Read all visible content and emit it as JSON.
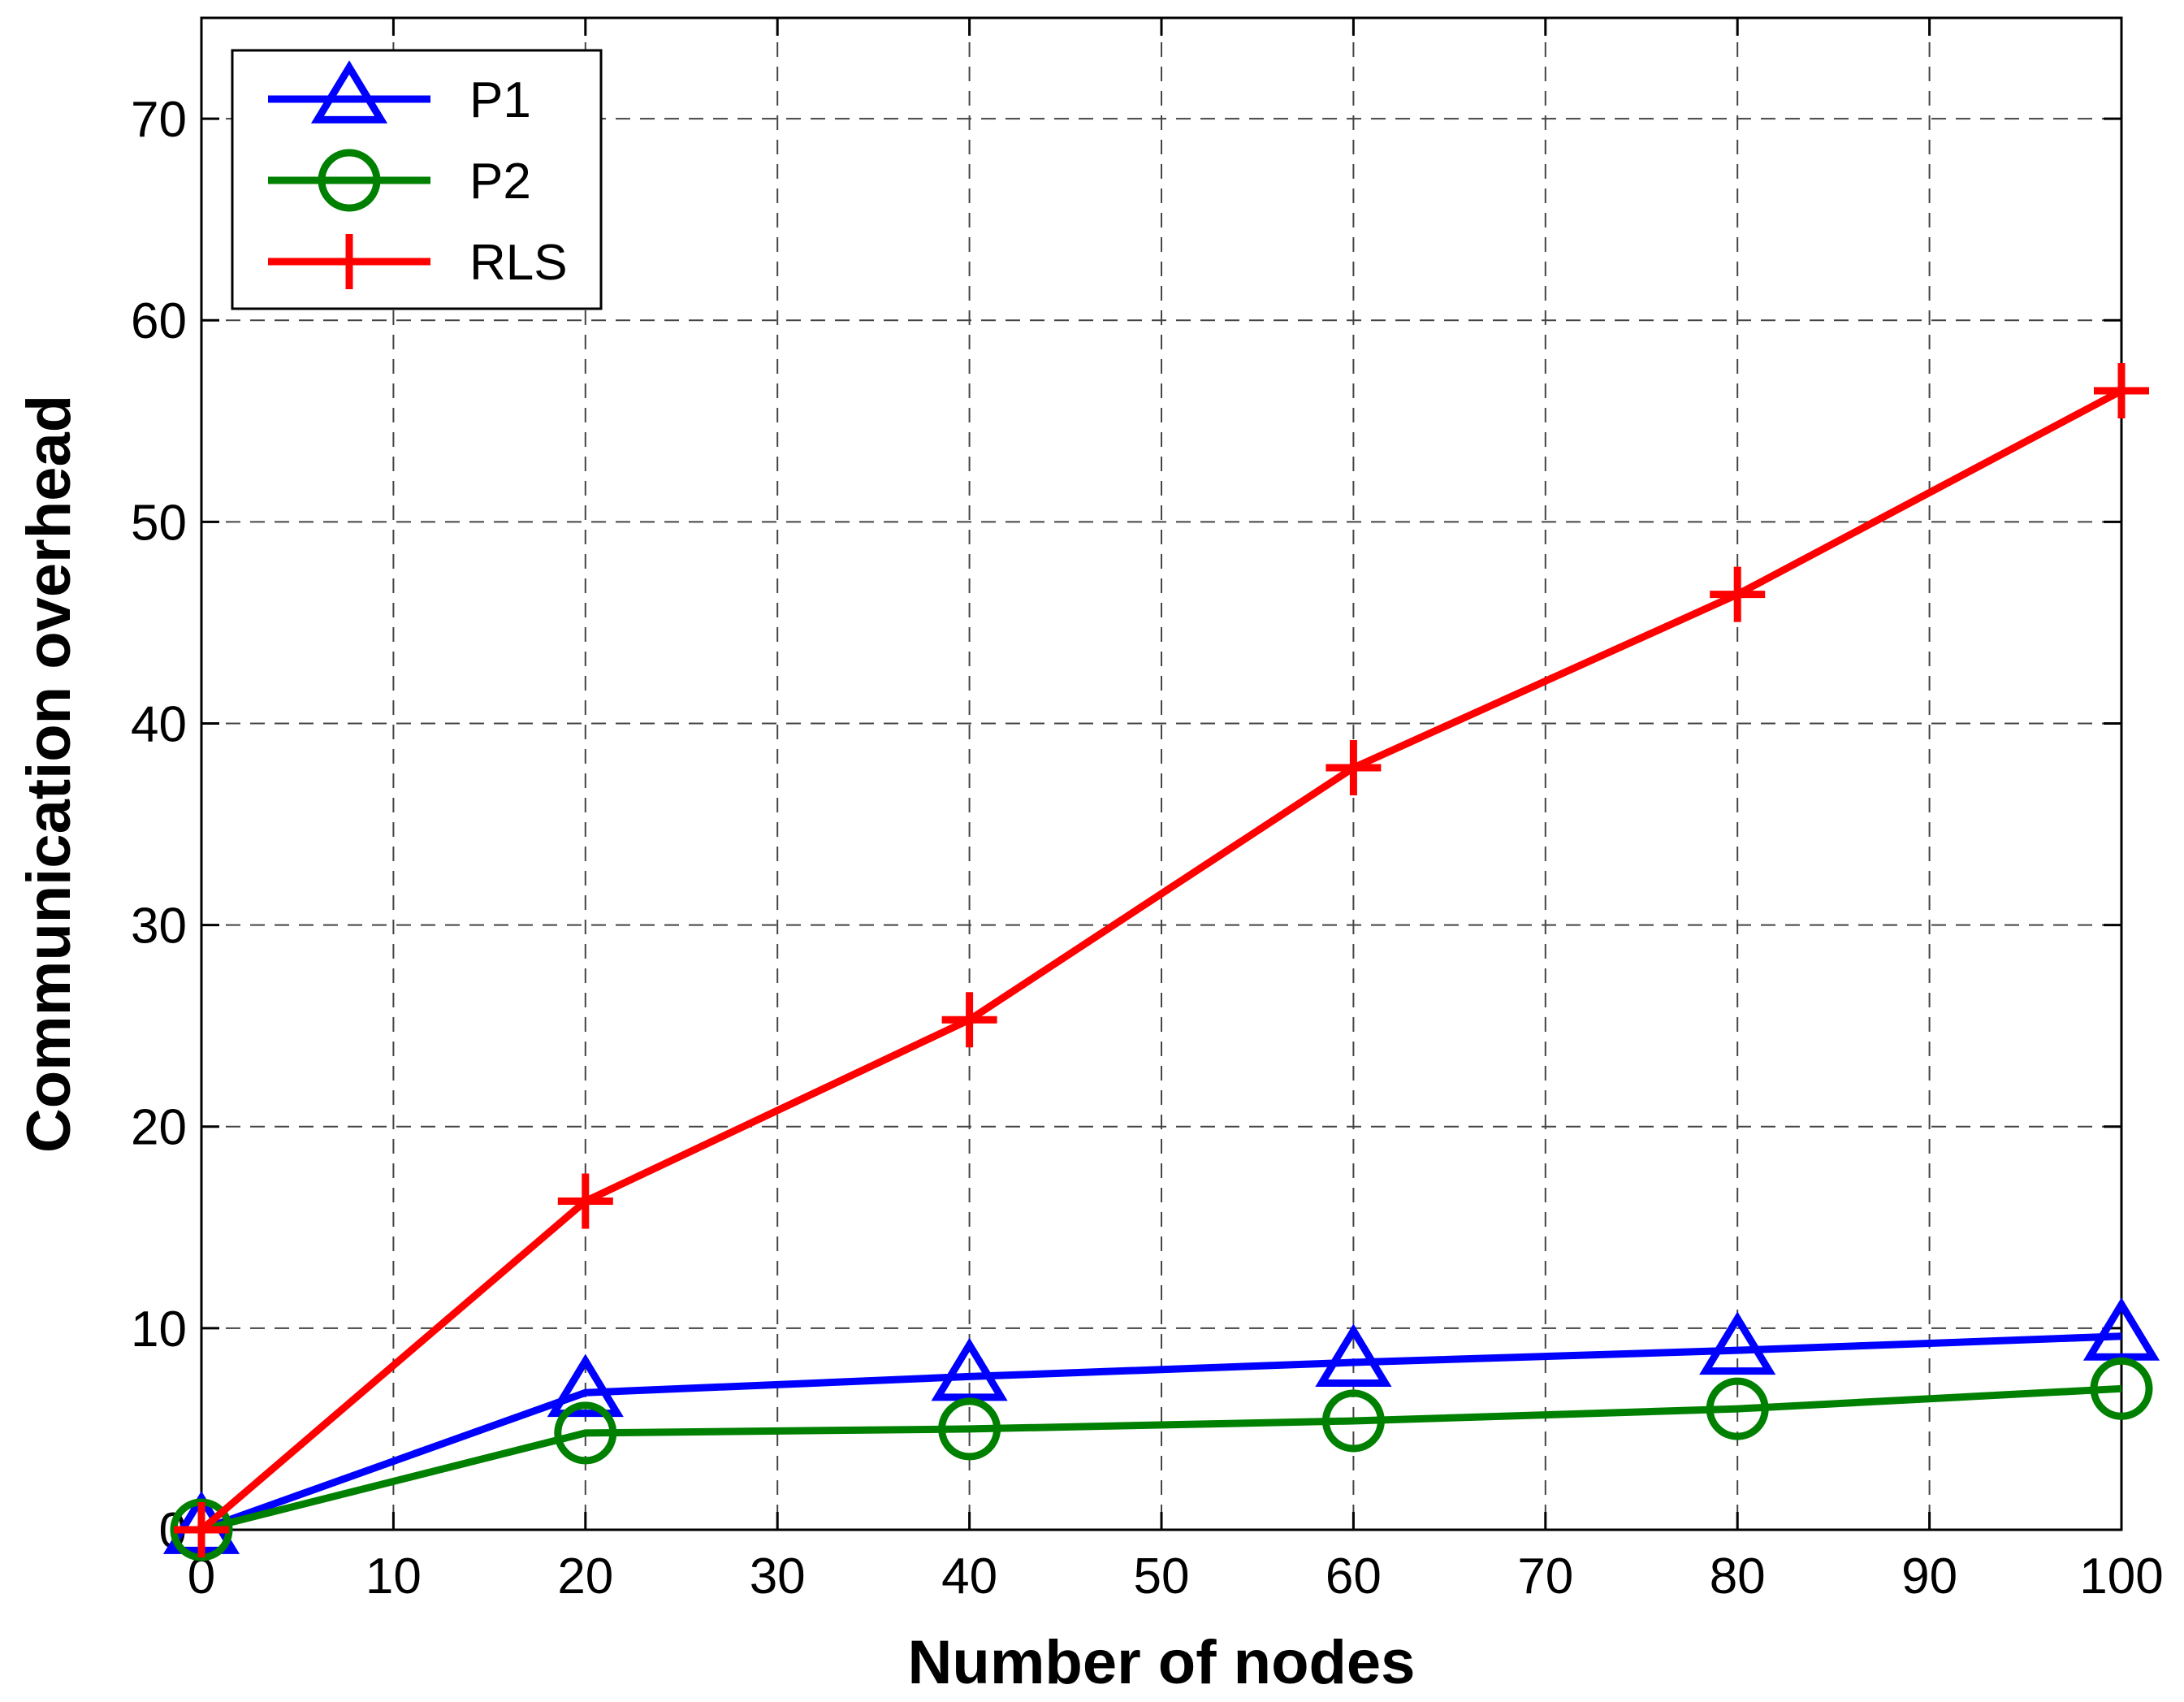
{
  "chart_data": {
    "type": "line",
    "title": "",
    "xlabel": "Number of nodes",
    "ylabel": "Communication overhead",
    "xlim": [
      0,
      100
    ],
    "ylim": [
      0,
      75
    ],
    "x_ticks": [
      0,
      10,
      20,
      30,
      40,
      50,
      60,
      70,
      80,
      90,
      100
    ],
    "y_ticks": [
      0,
      10,
      20,
      30,
      40,
      50,
      60,
      70
    ],
    "grid": true,
    "legend_position": "top-left",
    "x": [
      0,
      20,
      40,
      60,
      80,
      100
    ],
    "series": [
      {
        "name": "P1",
        "color": "#0000ff",
        "marker": "triangle",
        "values": [
          0,
          6.8,
          7.6,
          8.3,
          8.9,
          9.6
        ]
      },
      {
        "name": "P2",
        "color": "#008000",
        "marker": "circle",
        "values": [
          0,
          4.8,
          5.0,
          5.4,
          6.0,
          7.0
        ]
      },
      {
        "name": "RLS",
        "color": "#ff0000",
        "marker": "plus",
        "values": [
          0,
          16.3,
          25.3,
          37.8,
          46.4,
          56.5
        ]
      }
    ]
  }
}
